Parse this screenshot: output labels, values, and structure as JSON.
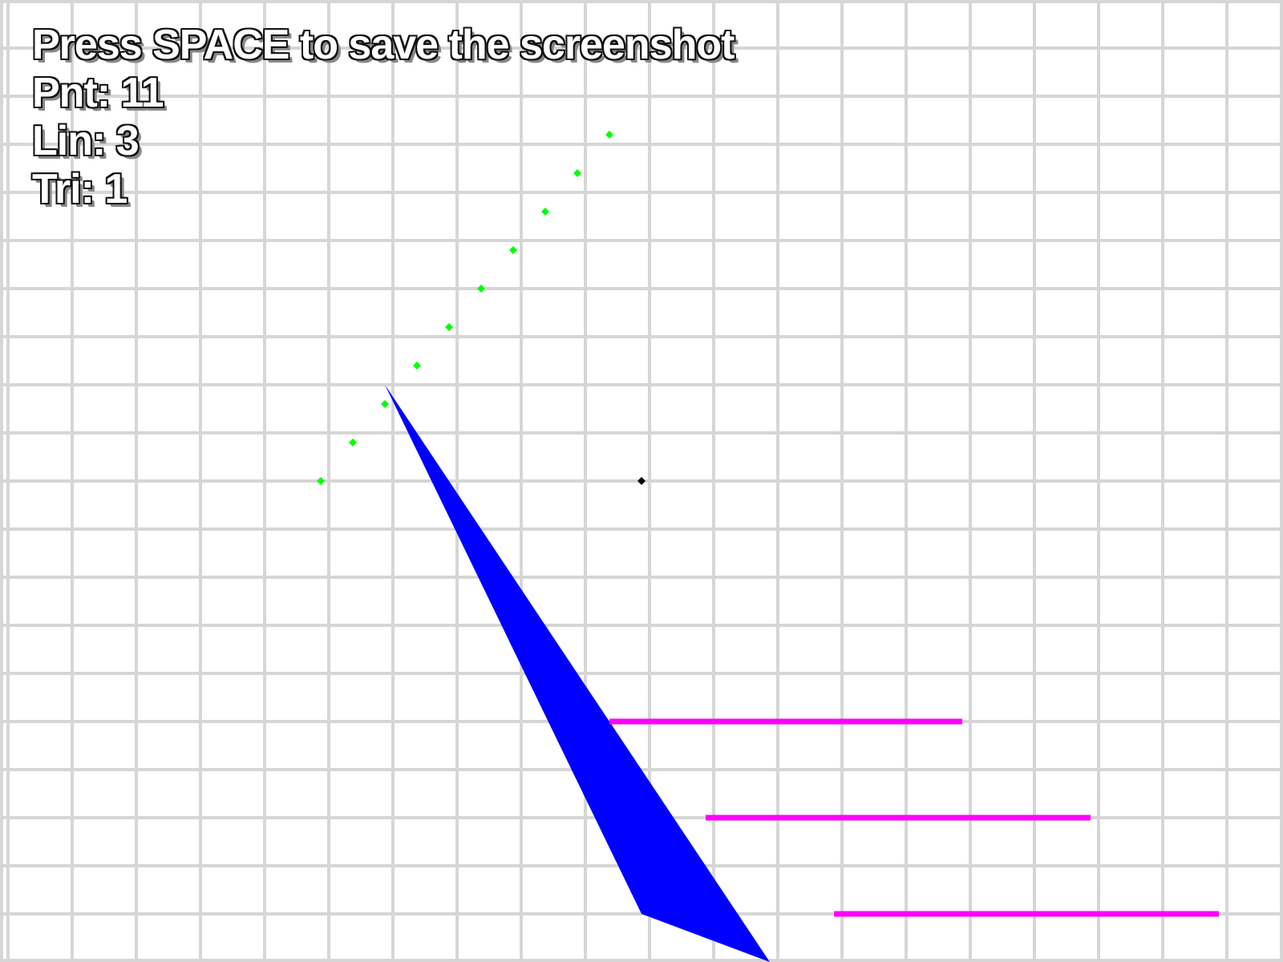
{
  "hud": {
    "instruction": "Press SPACE to save the screenshot",
    "points": "Pnt: 11",
    "lines": "Lin: 3",
    "triangles": "Tri: 1"
  },
  "colors": {
    "background": "#ffffff",
    "grid": "#d6d6d6",
    "point": "#00ff00",
    "active_point": "#000000",
    "line": "#ff00ff",
    "triangle": "#0000ff"
  }
}
